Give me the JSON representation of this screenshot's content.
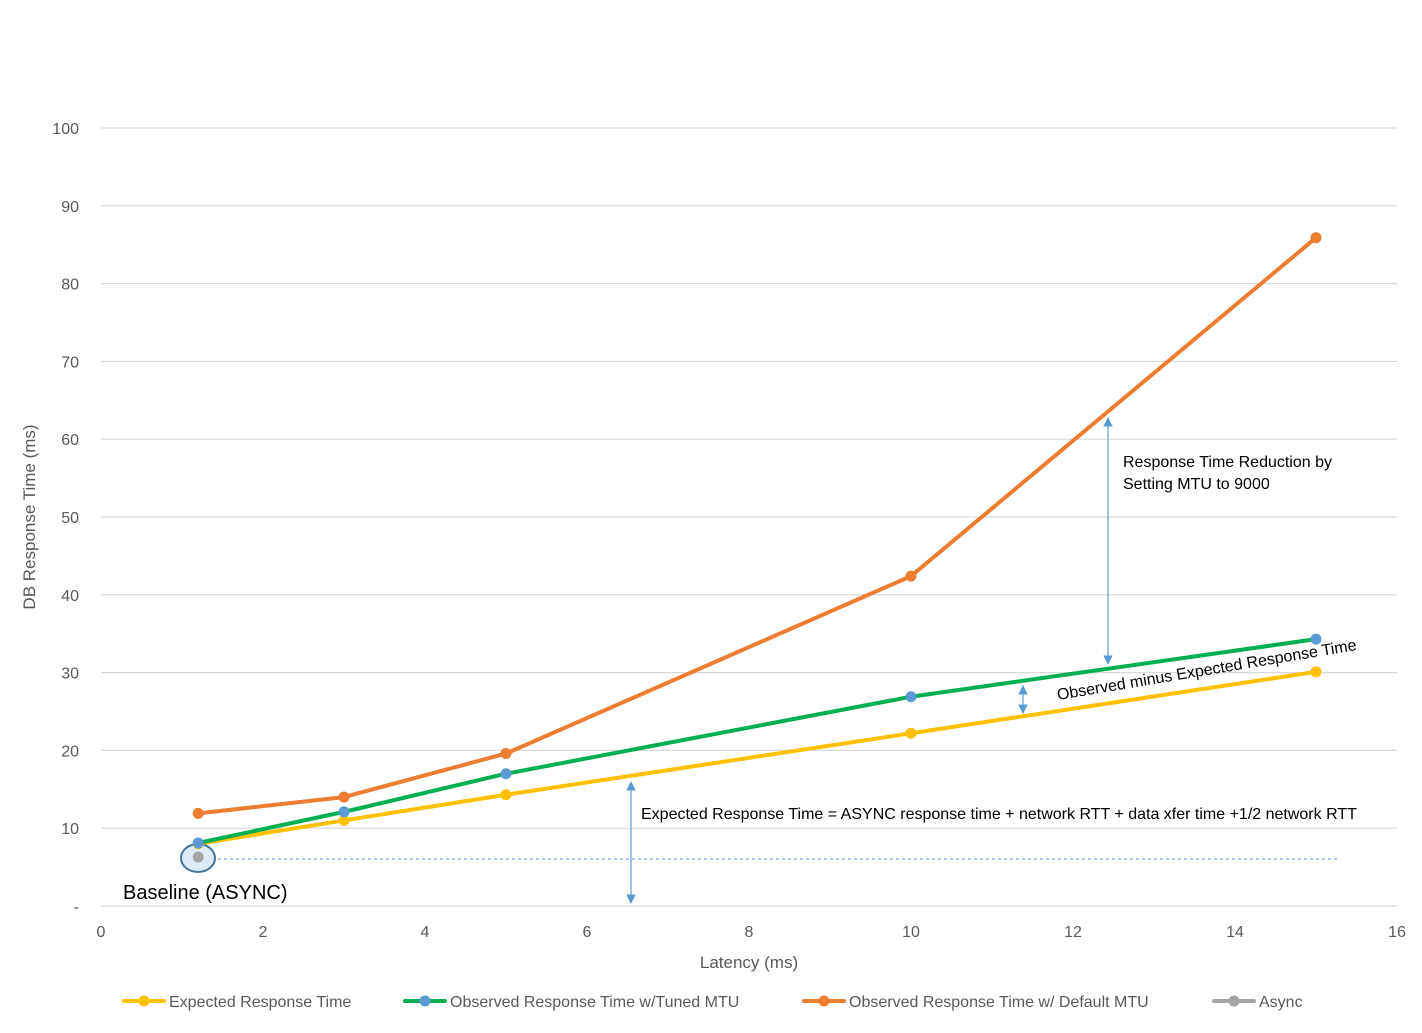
{
  "chart_data": {
    "type": "line",
    "title": "",
    "xlabel": "Latency (ms)",
    "ylabel": "DB Response Time (ms)",
    "xlim": [
      0,
      16
    ],
    "ylim": [
      0,
      100
    ],
    "xticks": [
      0,
      2,
      4,
      6,
      8,
      10,
      12,
      14,
      16
    ],
    "yticks": [
      10,
      20,
      30,
      40,
      50,
      60,
      70,
      80,
      90,
      100
    ],
    "y_zero_label": "-",
    "grid": "horizontal",
    "legend_position": "bottom",
    "series": [
      {
        "name": "Expected Response Time",
        "color": "#FFC000",
        "marker_color": "#FFC000",
        "x": [
          1.2,
          3,
          5,
          10,
          15
        ],
        "y": [
          8.0,
          11.0,
          14.3,
          22.2,
          30.1
        ]
      },
      {
        "name": "Observed Response Time w/Tuned MTU",
        "color": "#00B050",
        "marker_color": "#5B9BD5",
        "x": [
          1.2,
          3,
          5,
          10,
          15
        ],
        "y": [
          8.1,
          12.1,
          17.0,
          26.9,
          34.3
        ]
      },
      {
        "name": "Observed Response Time w/ Default MTU",
        "color": "#ED7D31",
        "marker_color": "#ED7D31",
        "x": [
          1.2,
          3,
          5,
          10,
          15
        ],
        "y": [
          11.9,
          14.0,
          19.6,
          42.4,
          85.9
        ]
      },
      {
        "name": "Async",
        "color": "#A5A5A5",
        "marker_color": "#A5A5A5",
        "x": [
          1.2
        ],
        "y": [
          6.3
        ]
      }
    ],
    "annotations": {
      "reduction": "Response Time Reduction by Setting MTU to 9000",
      "reduction_line1": "Response Time Reduction by",
      "reduction_line2": "Setting MTU to 9000",
      "observed_minus_expected": "Observed minus Expected Response Time",
      "expected_formula": "Expected Response Time = ASYNC response time + network RTT + data xfer time +1/2 network RTT",
      "baseline": "Baseline (ASYNC)"
    }
  }
}
